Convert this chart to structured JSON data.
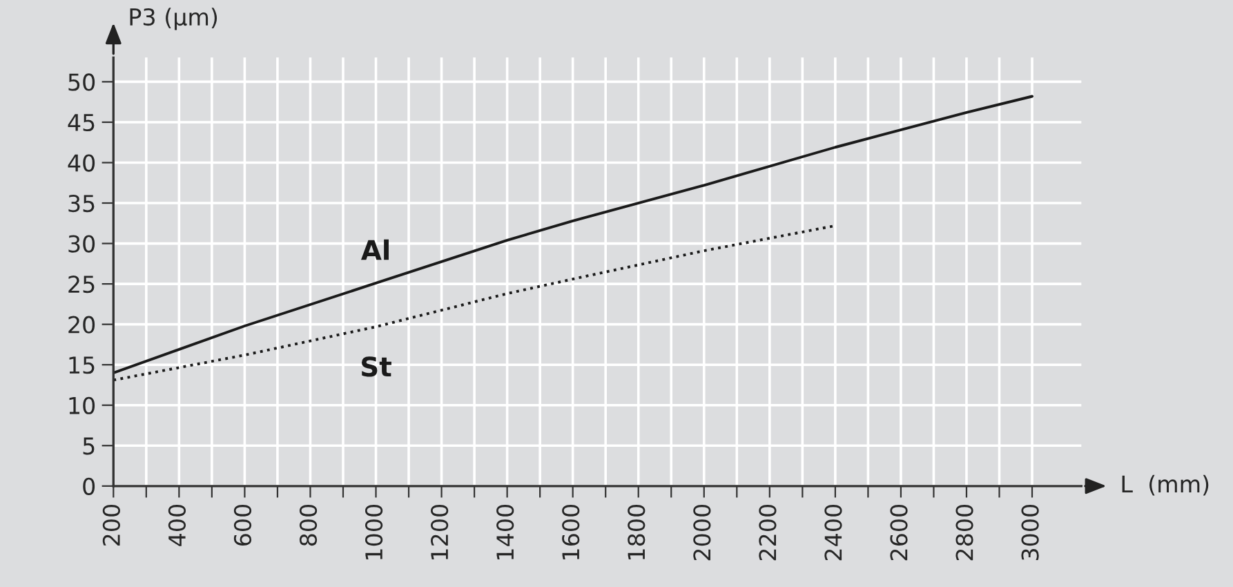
{
  "chart_data": {
    "type": "line",
    "xlabel": "L  (mm)",
    "ylabel": "P3 (µm)",
    "xlim": [
      200,
      3150
    ],
    "ylim": [
      0,
      53
    ],
    "xticks": [
      200,
      {
        "value": 300,
        "label": null
      },
      400,
      {
        "value": 500,
        "label": null
      },
      600,
      {
        "value": 700,
        "label": null
      },
      800,
      {
        "value": 900,
        "label": null
      },
      1000,
      {
        "value": 1100,
        "label": null
      },
      1200,
      {
        "value": 1300,
        "label": null
      },
      1400,
      {
        "value": 1500,
        "label": null
      },
      1600,
      {
        "value": 1700,
        "label": null
      },
      1800,
      {
        "value": 1900,
        "label": null
      },
      2000,
      {
        "value": 2100,
        "label": null
      },
      2200,
      {
        "value": 2300,
        "label": null
      },
      2400,
      {
        "value": 2500,
        "label": null
      },
      2600,
      {
        "value": 2700,
        "label": null
      },
      2800,
      {
        "value": 2900,
        "label": null
      },
      3000
    ],
    "yticks": [
      0,
      5,
      10,
      15,
      20,
      25,
      30,
      35,
      40,
      45,
      50
    ],
    "grid": true,
    "legend": false,
    "marker": "none",
    "series": [
      {
        "name": "Al",
        "color": "#1a1a1a",
        "line_style": "solid",
        "x": [
          200,
          600,
          1000,
          1400,
          1600,
          2000,
          2400,
          2800,
          3000
        ],
        "values": [
          14.0,
          19.8,
          25.1,
          30.4,
          32.8,
          37.2,
          41.9,
          46.2,
          48.2
        ]
      },
      {
        "name": "St",
        "color": "#1a1a1a",
        "line_style": "dotted",
        "x": [
          200,
          600,
          1000,
          1400,
          1600,
          2000,
          2400
        ],
        "values": [
          13.1,
          16.2,
          19.7,
          23.8,
          25.6,
          29.1,
          32.2
        ]
      }
    ]
  }
}
